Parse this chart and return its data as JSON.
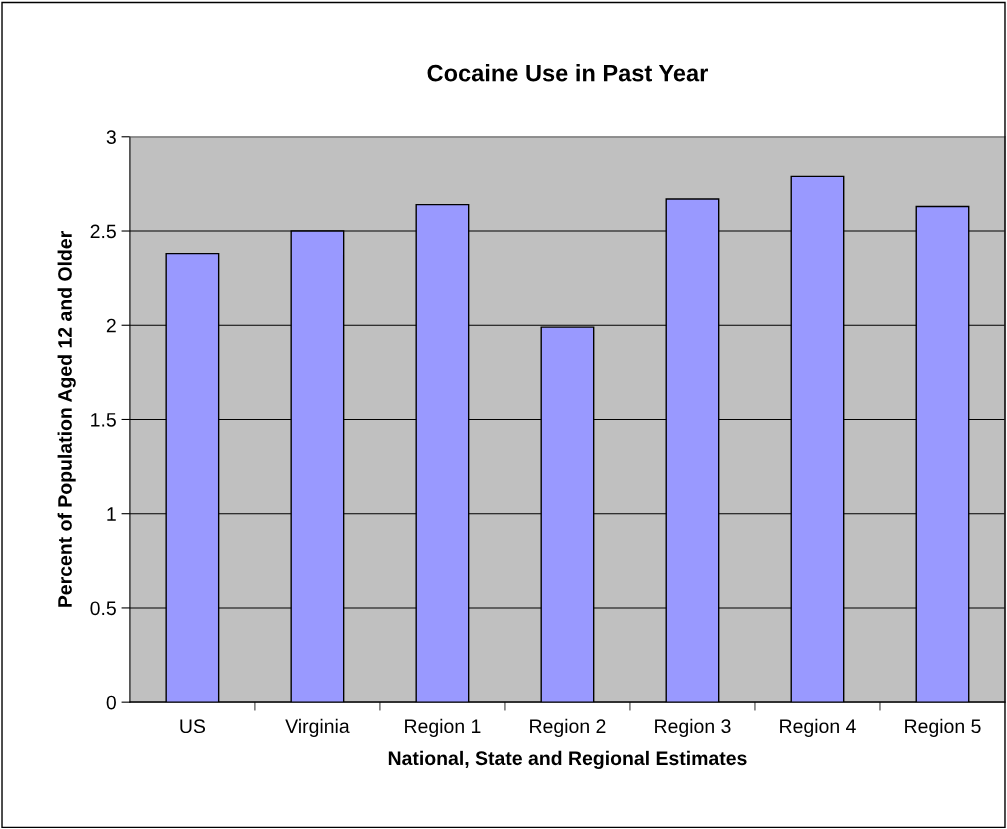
{
  "chart_data": {
    "type": "bar",
    "title": "Cocaine Use in Past Year",
    "xlabel": "National, State and Regional Estimates",
    "ylabel": "Percent of Population Aged 12 and Older",
    "categories": [
      "US",
      "Virginia",
      "Region 1",
      "Region 2",
      "Region 3",
      "Region 4",
      "Region 5"
    ],
    "values": [
      2.38,
      2.5,
      2.64,
      1.99,
      2.67,
      2.79,
      2.63
    ],
    "color": "#9999ff",
    "ylim": [
      0,
      3
    ],
    "yticks": [
      0,
      0.5,
      1,
      1.5,
      2,
      2.5,
      3
    ],
    "grid": "y",
    "legend": false
  }
}
